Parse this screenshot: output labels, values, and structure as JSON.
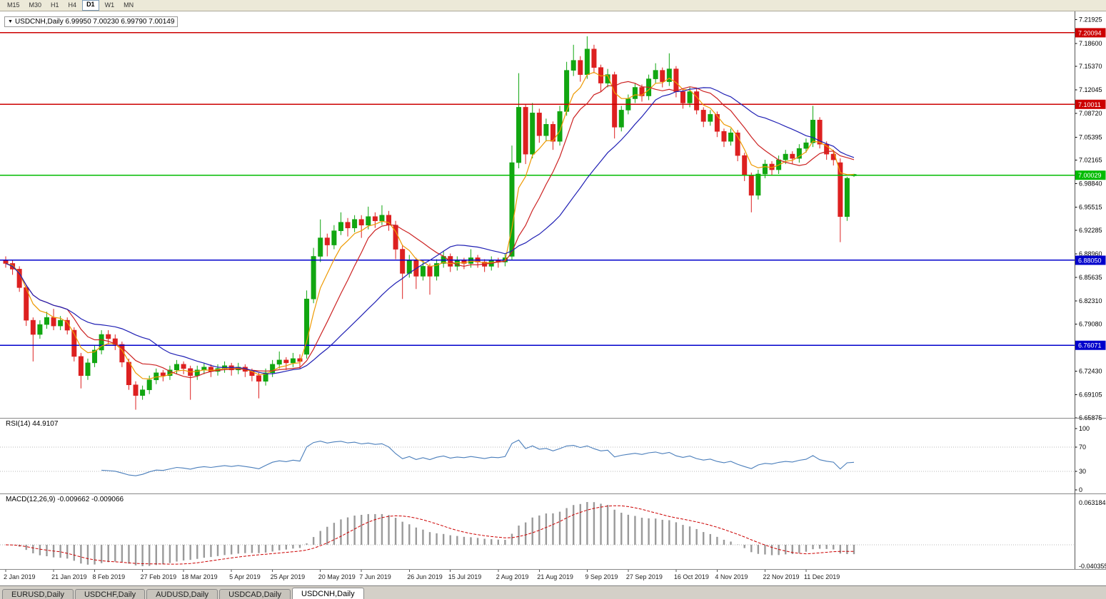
{
  "toolbar": {
    "timeframes": [
      {
        "label": "M15",
        "active": false
      },
      {
        "label": "M30",
        "active": false
      },
      {
        "label": "H1",
        "active": false
      },
      {
        "label": "H4",
        "active": false
      },
      {
        "label": "D1",
        "active": true
      },
      {
        "label": "W1",
        "active": false
      },
      {
        "label": "MN",
        "active": false
      }
    ]
  },
  "chart": {
    "header": "USDCNH,Daily  6.99950 7.00230 6.99790 7.00149",
    "symbol": "USDCNH",
    "timeframe": "Daily"
  },
  "indicators": {
    "rsi_header": "RSI(14) 44.9107",
    "macd_header": "MACD(12,26,9) -0.009662 -0.009066"
  },
  "tabs": [
    {
      "label": "EURUSD,Daily",
      "active": false
    },
    {
      "label": "USDCHF,Daily",
      "active": false
    },
    {
      "label": "AUDUSD,Daily",
      "active": false
    },
    {
      "label": "USDCAD,Daily",
      "active": false
    },
    {
      "label": "USDCNH,Daily",
      "active": true
    }
  ],
  "chart_data": {
    "type": "candlestick",
    "title": "USDCNH,Daily",
    "current_bar": {
      "open": "6.99950",
      "high": "7.00230",
      "low": "6.99790",
      "close": "7.00149"
    },
    "y_range": [
      6.6585,
      7.229
    ],
    "y_ticks": [
      "7.21925",
      "7.18600",
      "7.15370",
      "7.12045",
      "7.08720",
      "7.05395",
      "7.02165",
      "6.98840",
      "6.95515",
      "6.92285",
      "6.88960",
      "6.85635",
      "6.82310",
      "6.79080",
      "6.75755",
      "6.72430",
      "6.69105",
      "6.65875"
    ],
    "x_labels": [
      "2 Jan 2019",
      "21 Jan 2019",
      "8 Feb 2019",
      "27 Feb 2019",
      "18 Mar 2019",
      "5 Apr 2019",
      "25 Apr 2019",
      "20 May 2019",
      "7 Jun 2019",
      "26 Jun 2019",
      "15 Jul 2019",
      "2 Aug 2019",
      "21 Aug 2019",
      "9 Sep 2019",
      "27 Sep 2019",
      "16 Oct 2019",
      "4 Nov 2019",
      "22 Nov 2019",
      "11 Dec 2019"
    ],
    "x_label_indices": [
      0,
      7,
      13,
      20,
      26,
      33,
      39,
      46,
      52,
      59,
      65,
      72,
      78,
      85,
      91,
      98,
      104,
      111,
      117
    ],
    "h_lines": [
      {
        "value": 7.20094,
        "label": "7.20094",
        "color": "#CC0000"
      },
      {
        "value": 7.10011,
        "label": "7.10011",
        "color": "#CC0000"
      },
      {
        "value": 7.00029,
        "label": "7.00029",
        "color": "#00BB00"
      },
      {
        "value": 6.8805,
        "label": "6.88050",
        "color": "#0000CC"
      },
      {
        "value": 6.76071,
        "label": "6.76071",
        "color": "#0000CC"
      }
    ],
    "moving_averages": [
      {
        "period": 5,
        "type": "ema",
        "color": "#EE9900"
      },
      {
        "period": 10,
        "type": "sma",
        "color": "#CC2222"
      },
      {
        "period": 22,
        "type": "sma",
        "color": "#1F1FB4"
      }
    ],
    "rsi": {
      "period": 14,
      "current": 44.9107,
      "levels": [
        70,
        30
      ],
      "scale_labels": [
        "100",
        "70",
        "30",
        "0"
      ],
      "color": "#4A7EBB"
    },
    "macd": {
      "fast": 12,
      "slow": 26,
      "signal": 9,
      "main_value": -0.009662,
      "signal_value": -0.009066,
      "scale_top": "0.063184",
      "scale_bottom": "-0.040355"
    },
    "colors": {
      "bull": "#11A611",
      "bear": "#DD2020",
      "hist": "#9A9A9A",
      "signal": "#CC0000",
      "grid": "#B8B8B8",
      "scale_text": "#000000"
    },
    "ohlc": [
      [
        6.88,
        6.886,
        6.87,
        6.876
      ],
      [
        6.876,
        6.88,
        6.86,
        6.868
      ],
      [
        6.868,
        6.872,
        6.836,
        6.842
      ],
      [
        6.842,
        6.846,
        6.788,
        6.796
      ],
      [
        6.796,
        6.8,
        6.738,
        6.776
      ],
      [
        6.776,
        6.796,
        6.77,
        6.79
      ],
      [
        6.79,
        6.808,
        6.784,
        6.8
      ],
      [
        6.8,
        6.812,
        6.782,
        6.788
      ],
      [
        6.788,
        6.802,
        6.782,
        6.796
      ],
      [
        6.796,
        6.8,
        6.776,
        6.782
      ],
      [
        6.782,
        6.786,
        6.738,
        6.745
      ],
      [
        6.745,
        6.75,
        6.7,
        6.718
      ],
      [
        6.718,
        6.742,
        6.712,
        6.736
      ],
      [
        6.736,
        6.76,
        6.73,
        6.754
      ],
      [
        6.754,
        6.782,
        6.748,
        6.776
      ],
      [
        6.776,
        6.782,
        6.762,
        6.77
      ],
      [
        6.77,
        6.776,
        6.754,
        6.762
      ],
      [
        6.762,
        6.766,
        6.73,
        6.737
      ],
      [
        6.737,
        6.742,
        6.698,
        6.705
      ],
      [
        6.705,
        6.71,
        6.67,
        6.69
      ],
      [
        6.69,
        6.704,
        6.684,
        6.698
      ],
      [
        6.698,
        6.718,
        6.692,
        6.712
      ],
      [
        6.712,
        6.728,
        6.706,
        6.722
      ],
      [
        6.722,
        6.726,
        6.71,
        6.718
      ],
      [
        6.718,
        6.732,
        6.712,
        6.726
      ],
      [
        6.726,
        6.74,
        6.72,
        6.734
      ],
      [
        6.734,
        6.738,
        6.72,
        6.728
      ],
      [
        6.728,
        6.732,
        6.684,
        6.718
      ],
      [
        6.718,
        6.732,
        6.712,
        6.726
      ],
      [
        6.726,
        6.736,
        6.72,
        6.73
      ],
      [
        6.73,
        6.734,
        6.716,
        6.724
      ],
      [
        6.724,
        6.734,
        6.718,
        6.728
      ],
      [
        6.728,
        6.738,
        6.722,
        6.732
      ],
      [
        6.732,
        6.736,
        6.718,
        6.726
      ],
      [
        6.726,
        6.736,
        6.72,
        6.73
      ],
      [
        6.73,
        6.734,
        6.716,
        6.724
      ],
      [
        6.724,
        6.728,
        6.71,
        6.718
      ],
      [
        6.718,
        6.722,
        6.686,
        6.71
      ],
      [
        6.71,
        6.728,
        6.704,
        6.722
      ],
      [
        6.722,
        6.74,
        6.716,
        6.734
      ],
      [
        6.734,
        6.752,
        6.728,
        6.74
      ],
      [
        6.74,
        6.744,
        6.726,
        6.736
      ],
      [
        6.736,
        6.75,
        6.73,
        6.742
      ],
      [
        6.742,
        6.748,
        6.728,
        6.738
      ],
      [
        6.748,
        6.838,
        6.742,
        6.826
      ],
      [
        6.826,
        6.898,
        6.82,
        6.886
      ],
      [
        6.886,
        6.938,
        6.878,
        6.912
      ],
      [
        6.912,
        6.918,
        6.886,
        6.902
      ],
      [
        6.902,
        6.93,
        6.896,
        6.922
      ],
      [
        6.922,
        6.948,
        6.916,
        6.934
      ],
      [
        6.934,
        6.94,
        6.914,
        6.926
      ],
      [
        6.926,
        6.944,
        6.92,
        6.938
      ],
      [
        6.938,
        6.944,
        6.912,
        6.93
      ],
      [
        6.93,
        6.956,
        6.924,
        6.942
      ],
      [
        6.942,
        6.948,
        6.926,
        6.936
      ],
      [
        6.936,
        6.958,
        6.93,
        6.944
      ],
      [
        6.944,
        6.95,
        6.922,
        6.93
      ],
      [
        6.93,
        6.936,
        6.882,
        6.896
      ],
      [
        6.896,
        6.902,
        6.826,
        6.862
      ],
      [
        6.862,
        6.888,
        6.856,
        6.88
      ],
      [
        6.88,
        6.884,
        6.84,
        6.858
      ],
      [
        6.858,
        6.88,
        6.852,
        6.872
      ],
      [
        6.872,
        6.876,
        6.832,
        6.858
      ],
      [
        6.858,
        6.882,
        6.852,
        6.876
      ],
      [
        6.876,
        6.894,
        6.87,
        6.886
      ],
      [
        6.886,
        6.89,
        6.864,
        6.872
      ],
      [
        6.872,
        6.886,
        6.866,
        6.88
      ],
      [
        6.88,
        6.884,
        6.868,
        6.876
      ],
      [
        6.876,
        6.896,
        6.87,
        6.884
      ],
      [
        6.884,
        6.888,
        6.87,
        6.878
      ],
      [
        6.878,
        6.882,
        6.864,
        6.872
      ],
      [
        6.872,
        6.886,
        6.866,
        6.88
      ],
      [
        6.88,
        6.884,
        6.87,
        6.878
      ],
      [
        6.878,
        6.89,
        6.872,
        6.884
      ],
      [
        6.886,
        7.042,
        6.88,
        7.018
      ],
      [
        7.018,
        7.144,
        7.01,
        7.096
      ],
      [
        7.096,
        7.1,
        7.016,
        7.03
      ],
      [
        7.03,
        7.102,
        7.024,
        7.088
      ],
      [
        7.088,
        7.094,
        7.046,
        7.056
      ],
      [
        7.056,
        7.08,
        7.048,
        7.072
      ],
      [
        7.072,
        7.076,
        7.036,
        7.048
      ],
      [
        7.048,
        7.098,
        7.042,
        7.09
      ],
      [
        7.09,
        7.16,
        7.084,
        7.148
      ],
      [
        7.148,
        7.184,
        7.14,
        7.162
      ],
      [
        7.162,
        7.168,
        7.132,
        7.142
      ],
      [
        7.142,
        7.196,
        7.136,
        7.178
      ],
      [
        7.178,
        7.184,
        7.144,
        7.152
      ],
      [
        7.152,
        7.156,
        7.118,
        7.13
      ],
      [
        7.13,
        7.15,
        7.124,
        7.142
      ],
      [
        7.142,
        7.146,
        7.052,
        7.068
      ],
      [
        7.068,
        7.098,
        7.062,
        7.092
      ],
      [
        7.092,
        7.114,
        7.086,
        7.108
      ],
      [
        7.108,
        7.13,
        7.102,
        7.124
      ],
      [
        7.124,
        7.128,
        7.104,
        7.112
      ],
      [
        7.112,
        7.142,
        7.106,
        7.136
      ],
      [
        7.136,
        7.158,
        7.13,
        7.148
      ],
      [
        7.148,
        7.152,
        7.124,
        7.132
      ],
      [
        7.132,
        7.172,
        7.126,
        7.15
      ],
      [
        7.15,
        7.154,
        7.11,
        7.118
      ],
      [
        7.118,
        7.122,
        7.094,
        7.102
      ],
      [
        7.102,
        7.124,
        7.096,
        7.118
      ],
      [
        7.118,
        7.122,
        7.086,
        7.092
      ],
      [
        7.092,
        7.096,
        7.068,
        7.076
      ],
      [
        7.076,
        7.092,
        7.07,
        7.086
      ],
      [
        7.086,
        7.09,
        7.054,
        7.062
      ],
      [
        7.062,
        7.066,
        7.04,
        7.048
      ],
      [
        7.048,
        7.066,
        7.042,
        7.06
      ],
      [
        7.06,
        7.064,
        7.02,
        7.028
      ],
      [
        7.028,
        7.032,
        6.992,
        7.0
      ],
      [
        7.0,
        7.004,
        6.948,
        6.972
      ],
      [
        6.972,
        7.008,
        6.966,
        7.002
      ],
      [
        7.002,
        7.022,
        6.996,
        7.016
      ],
      [
        7.016,
        7.02,
        7.0,
        7.008
      ],
      [
        7.008,
        7.028,
        7.002,
        7.022
      ],
      [
        7.022,
        7.036,
        7.016,
        7.03
      ],
      [
        7.03,
        7.034,
        7.016,
        7.024
      ],
      [
        7.024,
        7.044,
        7.018,
        7.038
      ],
      [
        7.038,
        7.052,
        7.032,
        7.046
      ],
      [
        7.046,
        7.098,
        7.04,
        7.078
      ],
      [
        7.078,
        7.082,
        7.038,
        7.044
      ],
      [
        7.044,
        7.048,
        7.022,
        7.03
      ],
      [
        7.03,
        7.036,
        7.014,
        7.022
      ],
      [
        7.018,
        7.024,
        6.906,
        6.942
      ],
      [
        6.942,
        6.998,
        6.936,
        6.996
      ],
      [
        6.9995,
        7.0023,
        6.9979,
        7.0015
      ]
    ]
  }
}
